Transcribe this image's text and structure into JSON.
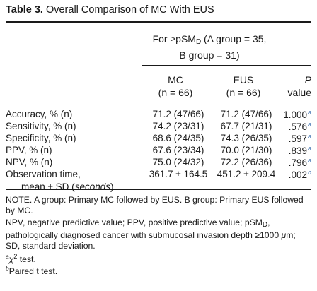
{
  "title": {
    "label": "Table 3.",
    "text": "Overall Comparison of MC With EUS"
  },
  "group_header": {
    "line1_prefix": "For ≥pSM",
    "line1_sub": "D",
    "line1_suffix": " (A group = 35,",
    "line2": "B group = 31)"
  },
  "columns": {
    "mc": {
      "name": "MC",
      "n": "(n = 66)"
    },
    "eus": {
      "name": "EUS",
      "n": "(n = 66)"
    },
    "p": {
      "name": "P",
      "sub": "value"
    }
  },
  "rows": [
    {
      "label": "Accuracy, % (n)",
      "mc": "71.2 (47/66)",
      "eus": "71.2 (47/66)",
      "p": "1.000",
      "mark": "a"
    },
    {
      "label": "Sensitivity, % (n)",
      "mc": "74.2 (23/31)",
      "eus": "67.7 (21/31)",
      "p": ".576",
      "mark": "a"
    },
    {
      "label": "Specificity, % (n)",
      "mc": "68.6 (24/35)",
      "eus": "74.3 (26/35)",
      "p": ".597",
      "mark": "a"
    },
    {
      "label": "PPV, % (n)",
      "mc": "67.6 (23/34)",
      "eus": "70.0 (21/30)",
      "p": ".839",
      "mark": "a"
    },
    {
      "label": "NPV, % (n)",
      "mc": "75.0 (24/32)",
      "eus": "72.2 (26/36)",
      "p": ".796",
      "mark": "a"
    },
    {
      "label": "Observation time,",
      "label2_prefix": "mean ± SD (",
      "label2_ital": "seconds",
      "label2_suffix": ")",
      "mc": "361.7 ± 164.5",
      "eus": "451.2 ± 209.4",
      "p": ".002",
      "mark": "b"
    }
  ],
  "notes": {
    "note1": "NOTE. A group: Primary MC followed by EUS. B group: Primary EUS followed by MC.",
    "note2_a": "NPV, negative predictive value; PPV, positive predictive value; pSM",
    "note2_sub": "D",
    "note2_b": ", pathologically diagnosed cancer with submucosal invasion depth ≥1000 ",
    "note2_mu": "μ",
    "note2_c": "m; SD, standard deviation.",
    "fa_mark": "a",
    "fa_chi": "χ",
    "fa_sq": "2",
    "fa_text": " test.",
    "fb_mark": "b",
    "fb_text": "Paired t test."
  }
}
